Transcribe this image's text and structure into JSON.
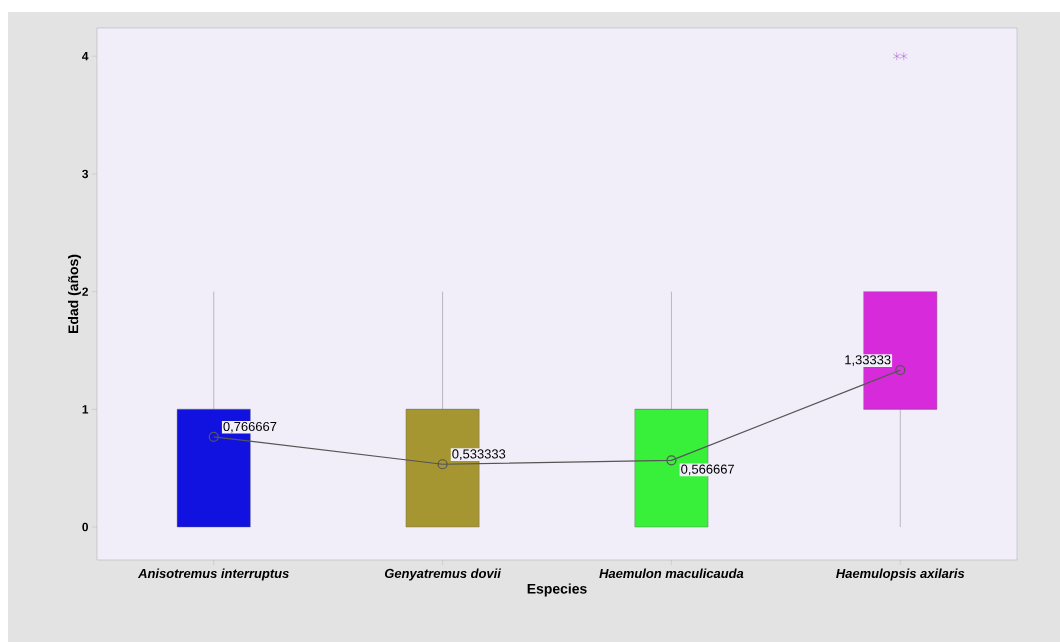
{
  "chart_data": {
    "type": "box",
    "xlabel": "Especies",
    "ylabel": "Edad (años)",
    "categories": [
      "Anisotremus interruptus",
      "Genyatremus dovii",
      "Haemulon maculicauda",
      "Haemulopsis axilaris"
    ],
    "series": [
      {
        "type": "box",
        "colors": [
          "#1212e0",
          "#a59632",
          "#38f03a",
          "#d72bdb"
        ],
        "boxes": [
          {
            "low": 0,
            "q1": 0,
            "median": 1,
            "q3": 1,
            "high": 2
          },
          {
            "low": 0,
            "q1": 0,
            "median": 1,
            "q3": 1,
            "high": 2
          },
          {
            "low": 0,
            "q1": 0,
            "median": 1,
            "q3": 1,
            "high": 2
          },
          {
            "low": 0,
            "q1": 1,
            "median": 1,
            "q3": 2,
            "high": 2,
            "outliers": [
              4,
              4
            ]
          }
        ]
      },
      {
        "type": "line",
        "color": "#555555",
        "marker": "circle",
        "values": [
          0.766667,
          0.533333,
          0.566667,
          1.33333
        ],
        "value_labels": [
          "0,766667",
          "0,533333",
          "0,566667",
          "1,33333"
        ]
      }
    ],
    "ylim": [
      -0.28,
      4.24
    ],
    "yticks": [
      0,
      1,
      2,
      3,
      4
    ],
    "grid": false
  }
}
